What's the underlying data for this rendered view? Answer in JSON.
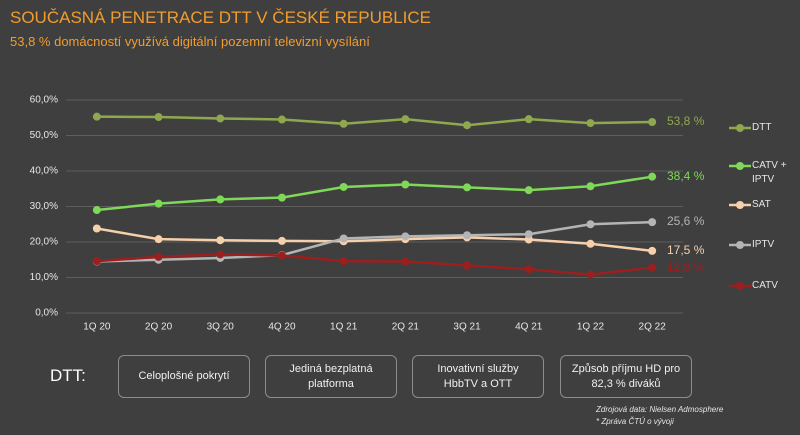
{
  "chart_data": {
    "type": "line",
    "title": "SOUČASNÁ PENETRACE DTT V ČESKÉ REPUBLICE",
    "subtitle": "53,8 % domácností využívá digitální pozemní televizní vysílání",
    "categories": [
      "1Q 20",
      "2Q 20",
      "3Q 20",
      "4Q 20",
      "1Q 21",
      "2Q 21",
      "3Q 21",
      "4Q 21",
      "1Q 22",
      "2Q 22"
    ],
    "ylim": [
      0,
      60
    ],
    "yticks": [
      {
        "value": 0,
        "label": "0,0%"
      },
      {
        "value": 10,
        "label": "10,0%"
      },
      {
        "value": 20,
        "label": "20,0%"
      },
      {
        "value": 30,
        "label": "30,0%"
      },
      {
        "value": 40,
        "label": "40,0%"
      },
      {
        "value": 50,
        "label": "50,0%"
      },
      {
        "value": 60,
        "label": "60,0%"
      }
    ],
    "grid": true,
    "legend": "right",
    "series": [
      {
        "name": "DTT",
        "color": "#8fa84f",
        "values": [
          55.3,
          55.2,
          54.8,
          54.5,
          53.3,
          54.6,
          52.9,
          54.6,
          53.5,
          53.8
        ],
        "value_labels": [
          null,
          null,
          null,
          null,
          null,
          null,
          null,
          null,
          null,
          "53,8 %"
        ]
      },
      {
        "name": "CATV + IPTV",
        "color": "#7fd858",
        "values": [
          29.0,
          30.8,
          32.0,
          32.5,
          35.5,
          36.2,
          35.4,
          34.6,
          35.7,
          38.4
        ],
        "value_labels": [
          null,
          null,
          null,
          null,
          null,
          null,
          null,
          null,
          null,
          "38,4 %"
        ]
      },
      {
        "name": "SAT",
        "color": "#f6d0ab",
        "values": [
          23.8,
          20.8,
          20.5,
          20.3,
          20.2,
          20.8,
          21.3,
          20.7,
          19.5,
          17.5
        ],
        "value_labels": [
          null,
          null,
          null,
          null,
          null,
          null,
          null,
          null,
          null,
          "17,5 %"
        ]
      },
      {
        "name": "IPTV",
        "color": "#b4b4b4",
        "values": [
          14.5,
          15.0,
          15.5,
          16.3,
          21.0,
          21.6,
          21.9,
          22.2,
          25.0,
          25.6
        ],
        "value_labels": [
          null,
          null,
          null,
          null,
          null,
          null,
          null,
          null,
          null,
          "25,6 %"
        ]
      },
      {
        "name": "CATV",
        "color": "#9c1f1f",
        "values": [
          14.6,
          15.8,
          16.5,
          16.2,
          14.6,
          14.5,
          13.4,
          12.3,
          10.8,
          12.8
        ],
        "value_labels": [
          null,
          null,
          null,
          null,
          null,
          null,
          null,
          null,
          null,
          "12,8 %"
        ]
      }
    ]
  },
  "features": {
    "label": "DTT:",
    "items": [
      "Celoplošné pokrytí",
      "Jediná bezplatná platforma",
      "Inovativní služby HbbTV a OTT",
      "Způsob příjmu HD pro 82,3 % diváků"
    ]
  },
  "footnotes": [
    "Zdrojová data: Nielsen Admosphere",
    "* Zpráva ČTÚ o vývoji"
  ]
}
